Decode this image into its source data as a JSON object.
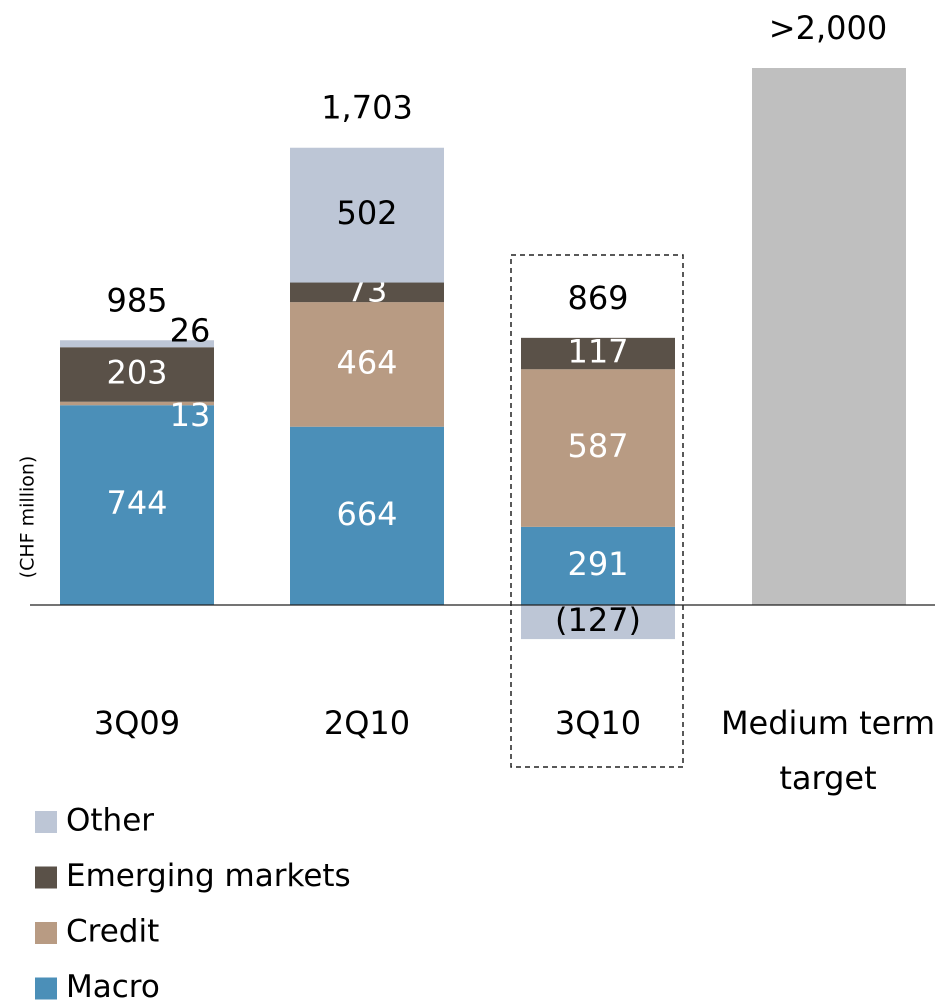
{
  "chart_data": {
    "type": "stacked_bar",
    "y_label": "(CHF million)",
    "categories": [
      "3Q09",
      "2Q10",
      "3Q10",
      "Medium term target"
    ],
    "series": [
      {
        "name": "Macro",
        "color": "#4b8fb8",
        "values": [
          744,
          664,
          291,
          null
        ]
      },
      {
        "name": "Credit",
        "color": "#b89b83",
        "values": [
          13,
          464,
          587,
          null
        ]
      },
      {
        "name": "Emerging markets",
        "color": "#5a5148",
        "values": [
          203,
          73,
          117,
          null
        ]
      },
      {
        "name": "Other",
        "color": "#bdc6d6",
        "values": [
          26,
          502,
          -127,
          null
        ],
        "value_labels": [
          "26",
          "502",
          "(127)",
          null
        ]
      }
    ],
    "totals": {
      "values": [
        985,
        1703,
        869,
        2000
      ],
      "value_labels": [
        "985",
        "1,703",
        "869",
        ">2,000"
      ],
      "color": "#bfbfbf"
    }
  }
}
